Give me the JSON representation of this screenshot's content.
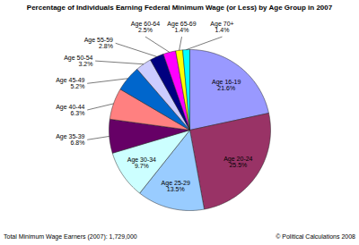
{
  "chart_data": {
    "type": "pie",
    "title": "Percentage of Individuals Earning Federal Minimum Wage (or Less) by Age Group in 2007",
    "categories": [
      "Age 16-19",
      "Age 20-24",
      "Age 25-29",
      "Age 30-34",
      "Age 35-39",
      "Age 40-44",
      "Age 45-49",
      "Age 50-54",
      "Age 55-59",
      "Age 60-64",
      "Age 65-69",
      "Age 70+"
    ],
    "values": [
      21.6,
      25.5,
      13.5,
      9.7,
      6.8,
      6.3,
      5.2,
      3.2,
      2.8,
      2.5,
      1.4,
      1.4
    ],
    "value_labels": [
      "21.6%",
      "25.5%",
      "13.5%",
      "9.7%",
      "6.8%",
      "6.3%",
      "5.2%",
      "3.2%",
      "2.8%",
      "2.5%",
      "1.4%",
      "1.4%"
    ],
    "colors": [
      "#9999ff",
      "#993366",
      "#99ccff",
      "#ccffff",
      "#660066",
      "#ff8080",
      "#0066cc",
      "#ccccff",
      "#000080",
      "#ff00ff",
      "#ffff00",
      "#00ffff"
    ],
    "data_labels": true,
    "tick_labels": false,
    "annotations": [
      "Total Minimum Wage Earners (2007): 1,729,000",
      "© Political Calculations 2008"
    ]
  }
}
